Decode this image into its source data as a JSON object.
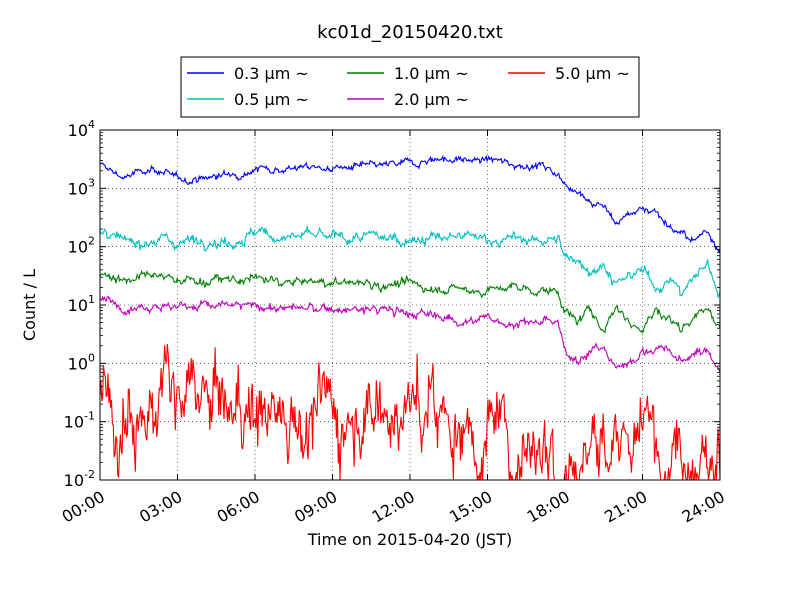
{
  "chart_data": {
    "type": "line",
    "title": "kc01d_20150420.txt",
    "xlabel": "Time on 2015-04-20 (JST)",
    "ylabel": "Count / L",
    "yscale": "log",
    "ylim": [
      0.01,
      10000
    ],
    "xlim": [
      "00:00",
      "24:00"
    ],
    "x_ticks": [
      "00:00",
      "03:00",
      "06:00",
      "09:00",
      "12:00",
      "15:00",
      "18:00",
      "21:00",
      "24:00"
    ],
    "y_ticks": [
      {
        "base": "10",
        "exp": "-2"
      },
      {
        "base": "10",
        "exp": "-1"
      },
      {
        "base": "10",
        "exp": "0"
      },
      {
        "base": "10",
        "exp": "1"
      },
      {
        "base": "10",
        "exp": "2"
      },
      {
        "base": "10",
        "exp": "3"
      },
      {
        "base": "10",
        "exp": "4"
      }
    ],
    "grid": true,
    "legend_position": "top-center",
    "x_hours": [
      0,
      1,
      2,
      3,
      4,
      5,
      6,
      7,
      8,
      9,
      10,
      11,
      12,
      13,
      14,
      15,
      16,
      17,
      17.75,
      18,
      18.5,
      19,
      19.5,
      20,
      20.5,
      21,
      21.5,
      22,
      22.5,
      23,
      23.5,
      24
    ],
    "series": [
      {
        "name": "0.3 μm ~",
        "color": "#0000ff",
        "noise": 0.04,
        "values": [
          2500,
          1500,
          2300,
          1400,
          1500,
          1700,
          2200,
          2200,
          2300,
          2200,
          2300,
          2400,
          2700,
          3300,
          3000,
          3100,
          2600,
          2500,
          1800,
          1100,
          1000,
          600,
          500,
          250,
          380,
          450,
          420,
          240,
          160,
          120,
          200,
          90
        ]
      },
      {
        "name": "0.5 μm ~",
        "color": "#00bfbf",
        "noise": 0.06,
        "values": [
          170,
          110,
          140,
          120,
          140,
          120,
          170,
          150,
          150,
          140,
          140,
          140,
          140,
          140,
          140,
          140,
          130,
          130,
          120,
          70,
          60,
          40,
          50,
          20,
          30,
          40,
          20,
          30,
          15,
          30,
          50,
          15
        ]
      },
      {
        "name": "1.0 μm ~",
        "color": "#008000",
        "noise": 0.05,
        "values": [
          35,
          28,
          30,
          28,
          26,
          26,
          28,
          25,
          24,
          24,
          24,
          23,
          22,
          20,
          18,
          18,
          20,
          18,
          16,
          8,
          5,
          8,
          4,
          10,
          5,
          4,
          8,
          6,
          4,
          7,
          9,
          4
        ]
      },
      {
        "name": "2.0 μm ~",
        "color": "#bf00bf",
        "noise": 0.05,
        "values": [
          12,
          10,
          10,
          9.5,
          10,
          9.5,
          9.5,
          9,
          8.5,
          8.5,
          8,
          8.5,
          7,
          6.5,
          5.5,
          5.5,
          5,
          5,
          4.5,
          1.5,
          1.3,
          1.6,
          1.8,
          0.8,
          1.2,
          1.5,
          1.8,
          1.7,
          1.0,
          1.5,
          1.6,
          0.8
        ]
      },
      {
        "name": "5.0 μm ~",
        "color": "#ff0000",
        "noise": 0.45,
        "values": [
          0.2,
          0.15,
          0.2,
          0.18,
          0.2,
          0.15,
          0.18,
          0.15,
          0.15,
          0.15,
          0.2,
          0.2,
          0.15,
          0.12,
          0.1,
          0.06,
          0.05,
          0.05,
          0.04,
          0.03,
          0.03,
          0.04,
          0.03,
          0.03,
          0.05,
          0.05,
          0.04,
          0.05,
          0.04,
          0.04,
          0.04,
          0.04
        ]
      }
    ]
  }
}
